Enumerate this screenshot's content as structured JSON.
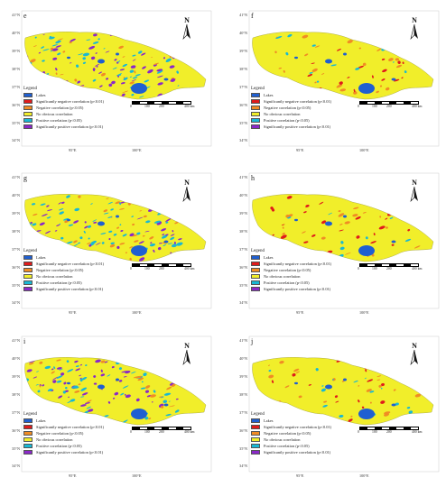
{
  "north_label": "N",
  "latitude_labels": [
    "41°N",
    "40°N",
    "39°N",
    "38°N",
    "37°N",
    "36°N",
    "35°N",
    "34°N"
  ],
  "longitude_labels": [
    "95°E",
    "100°E"
  ],
  "scale": {
    "labels": [
      "0",
      "100",
      "200",
      "400 km"
    ]
  },
  "legend": {
    "title": "Legend",
    "items": [
      {
        "label": "Lakes",
        "color": "#1f5fd1"
      },
      {
        "label": "Significantly negative correlation (p<0.01)",
        "color": "#e01b1b"
      },
      {
        "label": "Negative correlation (p<0.05)",
        "color": "#f08c24"
      },
      {
        "label": "No obvious correlation",
        "color": "#f1ee2a"
      },
      {
        "label": "Positive correlation (p<0.05)",
        "color": "#19b8d4"
      },
      {
        "label": "Significantly positive correlation (p<0.01)",
        "color": "#8a28c8"
      }
    ]
  },
  "panels": [
    {
      "label": "e",
      "dominant": "positive"
    },
    {
      "label": "f",
      "dominant": "negative"
    },
    {
      "label": "g",
      "dominant": "positive"
    },
    {
      "label": "h",
      "dominant": "negative"
    },
    {
      "label": "i",
      "dominant": "positive"
    },
    {
      "label": "j",
      "dominant": "negative"
    }
  ]
}
